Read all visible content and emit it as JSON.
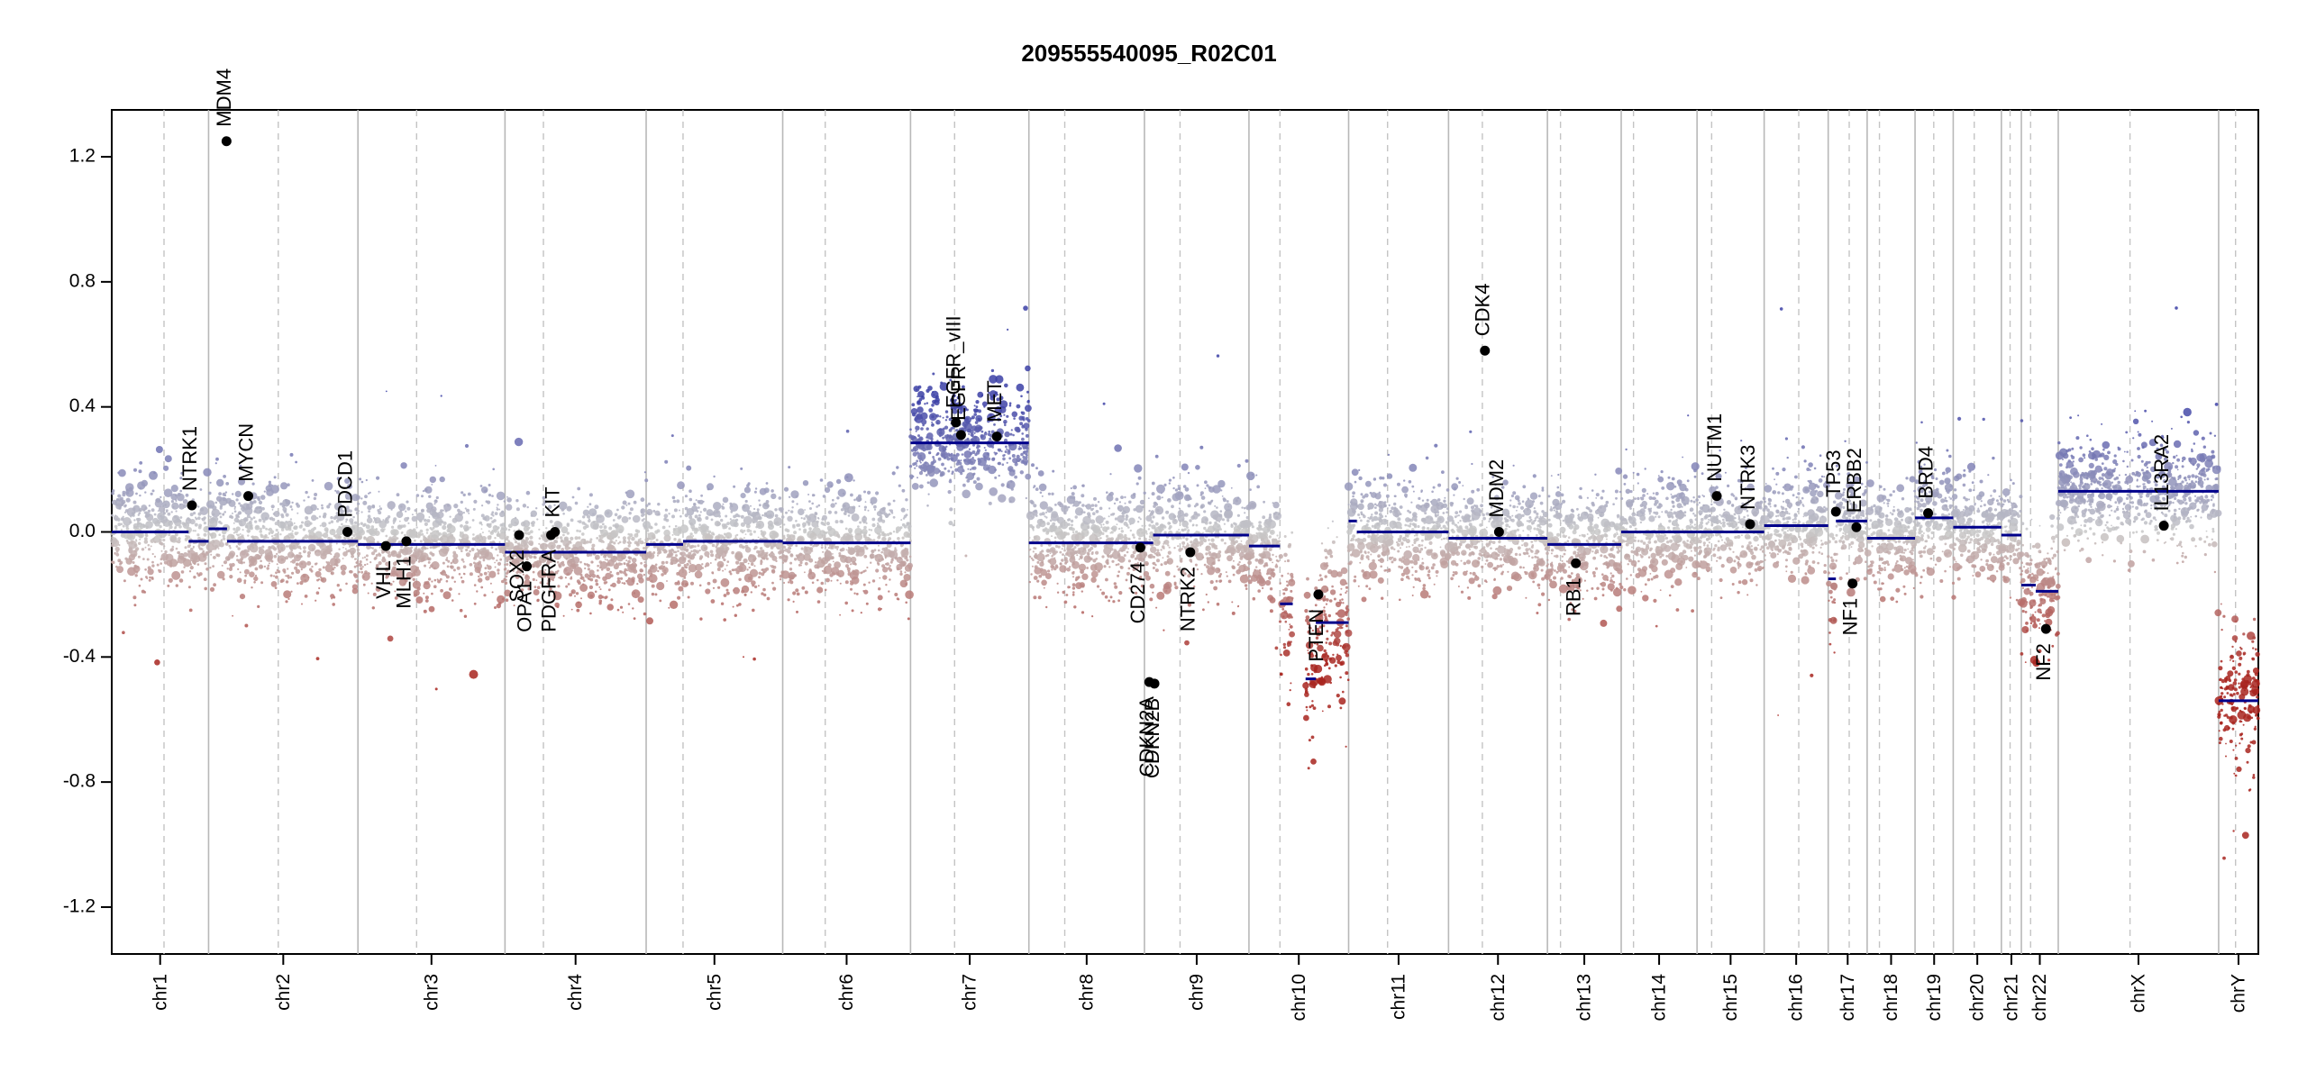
{
  "chart_data": {
    "type": "scatter",
    "title": "209555540095_R02C01",
    "xlabel": "",
    "ylabel": "",
    "ylim": [
      -1.35,
      1.35
    ],
    "yticks": [
      {
        "value": 1.2,
        "label": "1.2"
      },
      {
        "value": 0.8,
        "label": "0.8"
      },
      {
        "value": 0.4,
        "label": "0.4"
      },
      {
        "value": 0.0,
        "label": "0.0"
      },
      {
        "value": -0.4,
        "label": "-0.4"
      },
      {
        "value": -0.8,
        "label": "-0.8"
      },
      {
        "value": -1.2,
        "label": "-1.2"
      }
    ],
    "colors": {
      "gain": "#3b3fa6",
      "loss": "#a8251f",
      "neutral": "#c8c8c8",
      "segment": "#00008b",
      "gene": "#000000"
    },
    "chromosomes": [
      {
        "name": "chr1",
        "start": 0.0,
        "end": 3.78,
        "centromere": 2.04
      },
      {
        "name": "chr2",
        "start": 3.78,
        "end": 9.61,
        "centromere": 6.5
      },
      {
        "name": "chr3",
        "start": 9.61,
        "end": 15.35,
        "centromere": 11.9
      },
      {
        "name": "chr4",
        "start": 15.35,
        "end": 20.86,
        "centromere": 16.85
      },
      {
        "name": "chr5",
        "start": 20.86,
        "end": 26.19,
        "centromere": 22.3
      },
      {
        "name": "chr6",
        "start": 26.19,
        "end": 31.18,
        "centromere": 27.85
      },
      {
        "name": "chr7",
        "start": 31.18,
        "end": 35.8,
        "centromere": 32.9
      },
      {
        "name": "chr8",
        "start": 35.8,
        "end": 40.31,
        "centromere": 37.2
      },
      {
        "name": "chr9",
        "start": 40.31,
        "end": 44.39,
        "centromere": 41.7
      },
      {
        "name": "chr10",
        "start": 44.39,
        "end": 48.28,
        "centromere": 45.6
      },
      {
        "name": "chr11",
        "start": 48.28,
        "end": 52.18,
        "centromere": 49.8
      },
      {
        "name": "chr12",
        "start": 52.18,
        "end": 56.04,
        "centromere": 53.5
      },
      {
        "name": "chr13",
        "start": 56.04,
        "end": 58.92,
        "centromere": 56.55
      },
      {
        "name": "chr14",
        "start": 58.92,
        "end": 61.88,
        "centromere": 59.4
      },
      {
        "name": "chr15",
        "start": 61.88,
        "end": 64.5,
        "centromere": 62.45
      },
      {
        "name": "chr16",
        "start": 64.5,
        "end": 67.0,
        "centromere": 65.85
      },
      {
        "name": "chr17",
        "start": 67.0,
        "end": 68.52,
        "centromere": 67.82
      },
      {
        "name": "chr18",
        "start": 68.52,
        "end": 70.39,
        "centromere": 69.0
      },
      {
        "name": "chr19",
        "start": 70.39,
        "end": 71.88,
        "centromere": 71.12
      },
      {
        "name": "chr20",
        "start": 71.88,
        "end": 73.76,
        "centromere": 72.7
      },
      {
        "name": "chr21",
        "start": 73.76,
        "end": 74.54,
        "centromere": 74.1
      },
      {
        "name": "chr22",
        "start": 74.54,
        "end": 75.98,
        "centromere": 74.9
      },
      {
        "name": "chrX",
        "start": 75.98,
        "end": 82.24,
        "centromere": 78.78
      },
      {
        "name": "chrY",
        "start": 82.24,
        "end": 83.79,
        "centromere": 82.9
      }
    ],
    "segments": [
      {
        "start": 0.0,
        "end": 3.0,
        "value": 0.0
      },
      {
        "start": 3.0,
        "end": 3.78,
        "value": -0.03
      },
      {
        "start": 3.78,
        "end": 4.5,
        "value": 0.01
      },
      {
        "start": 4.5,
        "end": 9.61,
        "value": -0.03
      },
      {
        "start": 9.61,
        "end": 15.35,
        "value": -0.04
      },
      {
        "start": 15.35,
        "end": 20.86,
        "value": -0.065
      },
      {
        "start": 20.86,
        "end": 22.3,
        "value": -0.04
      },
      {
        "start": 22.3,
        "end": 26.19,
        "value": -0.03
      },
      {
        "start": 26.19,
        "end": 31.18,
        "value": -0.035
      },
      {
        "start": 31.18,
        "end": 35.8,
        "value": 0.285
      },
      {
        "start": 35.8,
        "end": 40.31,
        "value": -0.035
      },
      {
        "start": 40.31,
        "end": 40.65,
        "value": -0.035
      },
      {
        "start": 40.65,
        "end": 44.39,
        "value": -0.01
      },
      {
        "start": 44.39,
        "end": 45.6,
        "value": -0.045
      },
      {
        "start": 45.6,
        "end": 46.1,
        "value": -0.23
      },
      {
        "start": 46.6,
        "end": 47.0,
        "value": -0.47
      },
      {
        "start": 47.0,
        "end": 48.28,
        "value": -0.29
      },
      {
        "start": 48.28,
        "end": 48.6,
        "value": 0.035
      },
      {
        "start": 48.6,
        "end": 52.18,
        "value": 0.0
      },
      {
        "start": 52.18,
        "end": 56.04,
        "value": -0.02
      },
      {
        "start": 56.04,
        "end": 58.92,
        "value": -0.04
      },
      {
        "start": 58.92,
        "end": 61.88,
        "value": 0.0
      },
      {
        "start": 61.88,
        "end": 64.5,
        "value": 0.0
      },
      {
        "start": 64.5,
        "end": 67.0,
        "value": 0.02
      },
      {
        "start": 67.0,
        "end": 67.3,
        "value": -0.15
      },
      {
        "start": 67.3,
        "end": 68.52,
        "value": 0.035
      },
      {
        "start": 68.52,
        "end": 70.39,
        "value": -0.02
      },
      {
        "start": 70.39,
        "end": 71.88,
        "value": 0.045
      },
      {
        "start": 71.88,
        "end": 73.76,
        "value": 0.015
      },
      {
        "start": 73.76,
        "end": 74.54,
        "value": -0.01
      },
      {
        "start": 74.54,
        "end": 75.1,
        "value": -0.17
      },
      {
        "start": 75.1,
        "end": 75.98,
        "value": -0.19
      },
      {
        "start": 75.98,
        "end": 82.24,
        "value": 0.13
      },
      {
        "start": 82.24,
        "end": 83.79,
        "value": -0.54
      }
    ],
    "genes": [
      {
        "name": "NTRK1",
        "x": 3.13,
        "y": 0.085
      },
      {
        "name": "MDM4",
        "x": 4.48,
        "y": 1.25
      },
      {
        "name": "MYCN",
        "x": 5.33,
        "y": 0.115
      },
      {
        "name": "PDCD1",
        "x": 9.2,
        "y": 0.0
      },
      {
        "name": "VHL",
        "x": 10.7,
        "y": -0.045
      },
      {
        "name": "MLH1",
        "x": 11.5,
        "y": -0.03
      },
      {
        "name": "SOX2",
        "x": 15.9,
        "y": -0.01
      },
      {
        "name": "OPA1",
        "x": 16.2,
        "y": -0.11
      },
      {
        "name": "PDGFRA",
        "x": 17.15,
        "y": -0.01
      },
      {
        "name": "KIT",
        "x": 17.3,
        "y": 0.0
      },
      {
        "name": "EGFR_vIII",
        "x": 32.95,
        "y": 0.35
      },
      {
        "name": "EGFR",
        "x": 33.15,
        "y": 0.31
      },
      {
        "name": "MET",
        "x": 34.55,
        "y": 0.305
      },
      {
        "name": "CD274",
        "x": 40.15,
        "y": -0.05
      },
      {
        "name": "CDKN2A",
        "x": 40.5,
        "y": -0.48
      },
      {
        "name": "CDKN2B",
        "x": 40.7,
        "y": -0.485
      },
      {
        "name": "NTRK2",
        "x": 42.1,
        "y": -0.065
      },
      {
        "name": "PTEN",
        "x": 47.1,
        "y": -0.2
      },
      {
        "name": "CDK4",
        "x": 53.6,
        "y": 0.58
      },
      {
        "name": "MDM2",
        "x": 54.15,
        "y": 0.0
      },
      {
        "name": "RB1",
        "x": 57.15,
        "y": -0.1
      },
      {
        "name": "NUTM1",
        "x": 62.65,
        "y": 0.115
      },
      {
        "name": "NTRK3",
        "x": 63.95,
        "y": 0.025
      },
      {
        "name": "TP53",
        "x": 67.3,
        "y": 0.065
      },
      {
        "name": "NF1",
        "x": 67.95,
        "y": -0.165
      },
      {
        "name": "ERBB2",
        "x": 68.1,
        "y": 0.015
      },
      {
        "name": "BRD4",
        "x": 70.9,
        "y": 0.06
      },
      {
        "name": "NF2",
        "x": 75.5,
        "y": -0.31
      },
      {
        "name": "IL13RA2",
        "x": 80.1,
        "y": 0.02
      }
    ]
  }
}
